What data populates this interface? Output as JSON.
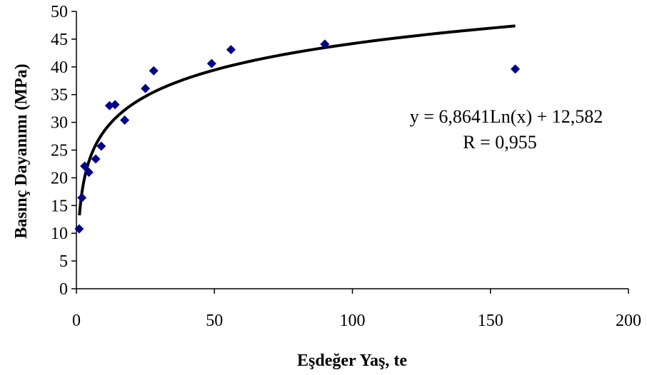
{
  "chart_data": {
    "type": "scatter",
    "title": "",
    "xlabel": "Eşdeğer Yaş, te",
    "ylabel": "Basınç Dayanımı (MPa)",
    "xlim": [
      0,
      200
    ],
    "ylim": [
      0,
      50
    ],
    "xticks": [
      0,
      50,
      100,
      150,
      200
    ],
    "yticks": [
      0,
      5,
      10,
      15,
      20,
      25,
      30,
      35,
      40,
      45,
      50
    ],
    "grid": false,
    "legend": "none",
    "marker_color": "#00008B",
    "trendline_color": "#000000",
    "points": [
      {
        "x": 1,
        "y": 10.8
      },
      {
        "x": 2,
        "y": 16.4
      },
      {
        "x": 3,
        "y": 22.1
      },
      {
        "x": 4.5,
        "y": 21.0
      },
      {
        "x": 7,
        "y": 23.4
      },
      {
        "x": 9,
        "y": 25.7
      },
      {
        "x": 12,
        "y": 33.0
      },
      {
        "x": 14,
        "y": 33.2
      },
      {
        "x": 17.5,
        "y": 30.4
      },
      {
        "x": 25,
        "y": 36.1
      },
      {
        "x": 28,
        "y": 39.3
      },
      {
        "x": 49,
        "y": 40.6
      },
      {
        "x": 56,
        "y": 43.1
      },
      {
        "x": 90,
        "y": 44.1
      },
      {
        "x": 159,
        "y": 39.6
      }
    ],
    "trendline": {
      "type": "logarithmic",
      "a": 6.8641,
      "b": 12.582,
      "x_start": 1.1,
      "x_end": 159
    },
    "annotations": {
      "equation": "y = 6,8641Ln(x) + 12,582",
      "r_value": "R = 0,955"
    }
  }
}
